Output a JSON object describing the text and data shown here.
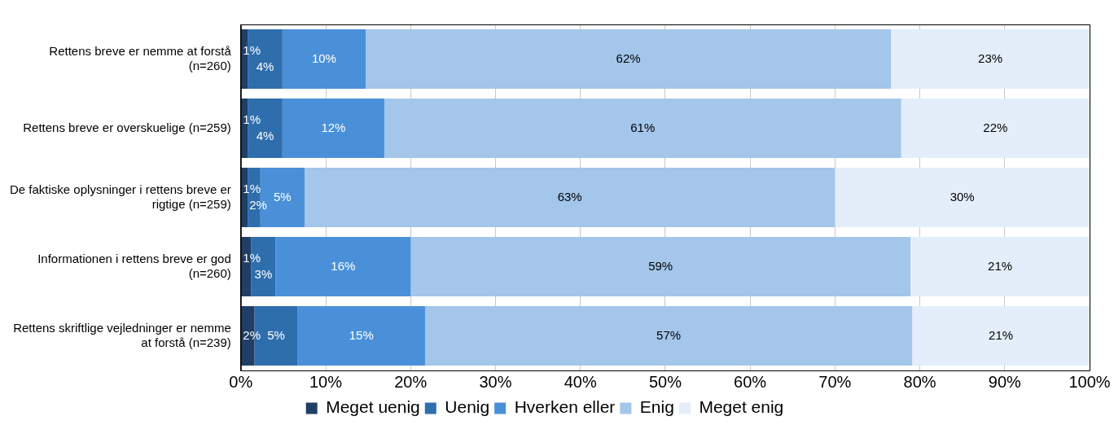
{
  "chart_data": {
    "type": "bar",
    "orientation": "horizontal",
    "stacked": true,
    "categories": [
      "Rettens breve er nemme at forstå\n(n=260)",
      "Rettens breve er overskuelige (n=259)",
      "De faktiske oplysninger i rettens breve er\nrigtige (n=259)",
      "Informationen i rettens breve er god\n(n=260)",
      "Rettens skriftlige vejledninger er nemme\nat forstå (n=239)"
    ],
    "series": [
      {
        "name": "Meget uenig",
        "color": "#1f3f66",
        "values": [
          0.8,
          0.8,
          0.8,
          1.2,
          1.6
        ],
        "value_labels": [
          "1%",
          "1%",
          "1%",
          "1%",
          "2%"
        ]
      },
      {
        "name": "Uenig",
        "color": "#2e6ead",
        "values": [
          4.1,
          4.1,
          1.5,
          2.9,
          5.1
        ],
        "value_labels": [
          "4%",
          "4%",
          "2%",
          "3%",
          "5%"
        ]
      },
      {
        "name": "Hverken eller",
        "color": "#4a90d9",
        "values": [
          9.8,
          12.0,
          5.2,
          15.9,
          15.0
        ],
        "value_labels": [
          "10%",
          "12%",
          "5%",
          "16%",
          "15%"
        ]
      },
      {
        "name": "Enig",
        "color": "#a3c6ea",
        "values": [
          61.9,
          60.9,
          62.5,
          58.9,
          57.4
        ],
        "value_labels": [
          "62%",
          "61%",
          "63%",
          "59%",
          "57%"
        ]
      },
      {
        "name": "Meget enig",
        "color": "#e3eefa",
        "values": [
          23.4,
          22.2,
          30.0,
          21.1,
          20.9
        ],
        "value_labels": [
          "23%",
          "22%",
          "30%",
          "21%",
          "21%"
        ]
      }
    ],
    "xlim": [
      0,
      100
    ],
    "xticks": [
      {
        "value": 0,
        "label": "0%"
      },
      {
        "value": 10,
        "label": "10%"
      },
      {
        "value": 20,
        "label": "20%"
      },
      {
        "value": 30,
        "label": "30%"
      },
      {
        "value": 40,
        "label": "40%"
      },
      {
        "value": 50,
        "label": "50%"
      },
      {
        "value": 60,
        "label": "60%"
      },
      {
        "value": 70,
        "label": "70%"
      },
      {
        "value": 80,
        "label": "80%"
      },
      {
        "value": 90,
        "label": "90%"
      },
      {
        "value": 100,
        "label": "100%"
      }
    ],
    "grid": "x",
    "legend": "bottom"
  }
}
